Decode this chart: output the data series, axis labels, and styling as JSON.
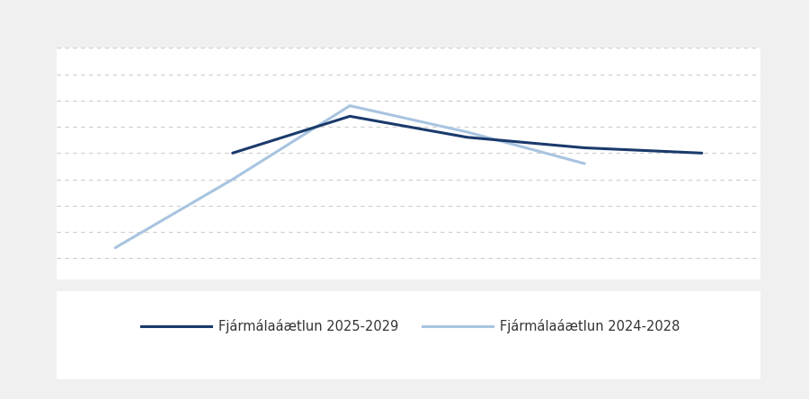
{
  "series1_label": "Fjármálaáætlun 2025-2029",
  "series2_label": "Fjármálaáætlun 2024-2028",
  "series1_color": "#1a3a6b",
  "series2_color": "#a8c4e0",
  "series1_x": [
    2025,
    2026,
    2027,
    2028,
    2029
  ],
  "series1_y": [
    60.0,
    63.5,
    61.5,
    60.5,
    60.0
  ],
  "series2_x": [
    2024,
    2025,
    2026,
    2027,
    2028
  ],
  "series2_y": [
    51.0,
    57.5,
    64.5,
    62.0,
    59.0
  ],
  "ylim": [
    48,
    70
  ],
  "xlim": [
    2023.5,
    2029.5
  ],
  "background_color": "#f0f0f0",
  "panel_color": "#ffffff",
  "grid_color": "#cccccc",
  "linewidth": 2.2,
  "legend_fontsize": 10.5
}
